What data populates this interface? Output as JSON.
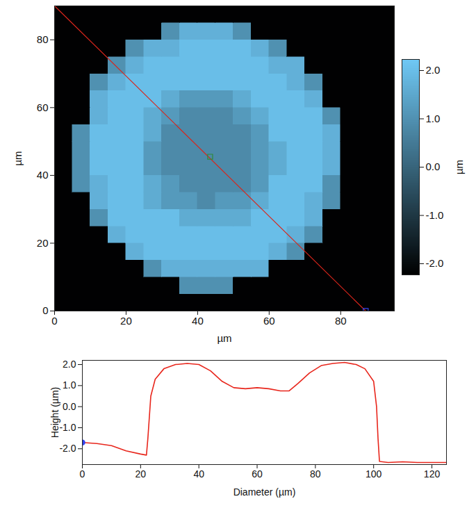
{
  "chart_data": [
    {
      "type": "heatmap",
      "xlabel": "µm",
      "ylabel": "µm",
      "xlim": [
        0,
        95
      ],
      "ylim": [
        0,
        90
      ],
      "xticks": [
        0,
        20,
        40,
        60,
        80
      ],
      "yticks": [
        0,
        20,
        40,
        60,
        80
      ],
      "grid": false,
      "x": [
        2.5,
        7.5,
        12.5,
        17.5,
        22.5,
        27.5,
        32.5,
        37.5,
        42.5,
        47.5,
        52.5,
        57.5,
        62.5,
        67.5,
        72.5,
        77.5,
        82.5,
        87.5,
        92.5
      ],
      "y": [
        2.5,
        7.5,
        12.5,
        17.5,
        22.5,
        27.5,
        32.5,
        37.5,
        42.5,
        47.5,
        52.5,
        57.5,
        62.5,
        67.5,
        72.5,
        77.5,
        82.5,
        87.5
      ],
      "z": [
        [
          -2.2,
          -2.2,
          -2.2,
          -2.2,
          -2.2,
          -2.2,
          -2.2,
          -2.2,
          -2.2,
          -2.2,
          -2.2,
          -2.2,
          -2.2,
          -2.2,
          -2.2,
          -2.2,
          -2.2,
          -2.2,
          -2.2
        ],
        [
          -2.2,
          -2.2,
          -2.2,
          -2.2,
          -2.2,
          -2.2,
          -2.2,
          1,
          1,
          1,
          -2.2,
          -2.2,
          -2.2,
          -2.2,
          -2.2,
          -2.2,
          -2.2,
          -2.2,
          -2.2
        ],
        [
          -2.2,
          -2.2,
          -2.2,
          -2.2,
          -2.2,
          1,
          1.7,
          1.7,
          1.7,
          1.7,
          1.7,
          1.7,
          -2.2,
          -2.2,
          -2.2,
          -2.2,
          -2.2,
          -2.2,
          -2.2
        ],
        [
          -2.2,
          -2.2,
          -2.2,
          -2.2,
          1.7,
          2,
          2,
          2,
          2,
          2,
          2,
          2,
          1.7,
          1,
          -2.2,
          -2.2,
          -2.2,
          -2.2,
          -2.2
        ],
        [
          -2.2,
          -2.2,
          -2.2,
          1.7,
          2,
          2,
          2,
          2,
          2,
          2,
          2,
          2,
          2,
          1.7,
          1,
          -2.2,
          -2.2,
          -2.2,
          -2.2
        ],
        [
          -2.2,
          -2.2,
          1,
          2,
          2,
          2,
          2,
          1.6,
          1.6,
          1.6,
          1.6,
          2,
          2,
          2,
          1.7,
          -2.2,
          -2.2,
          -2.2,
          -2.2
        ],
        [
          -2.2,
          -2.2,
          1.7,
          2,
          2,
          1.6,
          1.2,
          1.2,
          0.85,
          1.2,
          1.2,
          1.6,
          2,
          2,
          1.7,
          1,
          -2.2,
          -2.2,
          -2.2
        ],
        [
          -2.2,
          1,
          1.7,
          2,
          2,
          1.6,
          1.2,
          0.85,
          0.85,
          0.85,
          0.85,
          1.2,
          2,
          2,
          2,
          1,
          -2.2,
          -2.2,
          -2.2
        ],
        [
          -2.2,
          1,
          2,
          2,
          2,
          1.2,
          0.85,
          0.85,
          0.85,
          0.85,
          0.85,
          1.2,
          1.6,
          2,
          2,
          1.7,
          -2.2,
          -2.2,
          -2.2
        ],
        [
          -2.2,
          1,
          2,
          2,
          2,
          1.2,
          0.85,
          0.85,
          0.85,
          0.85,
          0.85,
          1.2,
          1.6,
          2,
          2,
          1.7,
          -2.2,
          -2.2,
          -2.2
        ],
        [
          -2.2,
          1,
          2,
          2,
          2,
          1.6,
          0.85,
          0.85,
          0.85,
          0.85,
          0.85,
          1.2,
          2,
          2,
          2,
          1.7,
          -2.2,
          -2.2,
          -2.2
        ],
        [
          -2.2,
          -2.2,
          1.7,
          2,
          2,
          1.6,
          1.2,
          0.85,
          0.85,
          0.85,
          1.2,
          1.6,
          2,
          2,
          2,
          1,
          -2.2,
          -2.2,
          -2.2
        ],
        [
          -2.2,
          -2.2,
          1.7,
          2,
          2,
          2,
          1.6,
          1.2,
          1.2,
          1.2,
          1.6,
          2,
          2,
          2,
          1.7,
          -2.2,
          -2.2,
          -2.2,
          -2.2
        ],
        [
          -2.2,
          -2.2,
          1,
          1.7,
          2,
          2,
          2,
          2,
          2,
          2,
          2,
          2,
          2,
          1.7,
          1,
          -2.2,
          -2.2,
          -2.2,
          -2.2
        ],
        [
          -2.2,
          -2.2,
          -2.2,
          1,
          1.7,
          2,
          2,
          2,
          2,
          2,
          2,
          2,
          1.7,
          1.7,
          -2.2,
          -2.2,
          -2.2,
          -2.2,
          -2.2
        ],
        [
          -2.2,
          -2.2,
          -2.2,
          -2.2,
          1,
          1.7,
          1.7,
          2,
          2,
          2,
          2,
          1.7,
          1,
          -2.2,
          -2.2,
          -2.2,
          -2.2,
          -2.2,
          -2.2
        ],
        [
          -2.2,
          -2.2,
          -2.2,
          -2.2,
          -2.2,
          -2.2,
          1,
          1.7,
          1.7,
          1.7,
          1,
          -2.2,
          -2.2,
          -2.2,
          -2.2,
          -2.2,
          -2.2,
          -2.2,
          -2.2
        ],
        [
          -2.2,
          -2.2,
          -2.2,
          -2.2,
          -2.2,
          -2.2,
          -2.2,
          -2.2,
          -2.2,
          -2.2,
          -2.2,
          -2.2,
          -2.2,
          -2.2,
          -2.2,
          -2.2,
          -2.2,
          -2.2,
          -2.2
        ]
      ],
      "colorbar": {
        "label": "µm",
        "range": [
          -2.23,
          2.23
        ],
        "ticks": [
          {
            "value": 2,
            "label": "2.0"
          },
          {
            "value": 1,
            "label": "1.0"
          },
          {
            "value": 0,
            "label": "0.0"
          },
          {
            "value": -1,
            "label": "-1.0"
          },
          {
            "value": -2,
            "label": "-2.0"
          }
        ],
        "colors": [
          "#000000",
          "#6fc8f5"
        ]
      },
      "profile_line": {
        "x": [
          0,
          87
        ],
        "y": [
          90,
          0
        ],
        "color": "#d8261c"
      },
      "markers": [
        {
          "x": 43.5,
          "y": 45.5,
          "color": "#2e8b3a",
          "marker": "square"
        },
        {
          "x": 87,
          "y": 0,
          "color": "#3344ee",
          "marker": "square"
        }
      ]
    },
    {
      "type": "line",
      "xlabel": "Diameter (µm)",
      "ylabel": "Height (µm)",
      "xlim": [
        0,
        125
      ],
      "ylim": [
        -2.75,
        2.2
      ],
      "xticks": [
        0,
        20,
        40,
        60,
        80,
        100,
        120
      ],
      "yticks": [
        {
          "value": 2,
          "label": "2.0"
        },
        {
          "value": 1,
          "label": "1.0"
        },
        {
          "value": 0,
          "label": "0.0"
        },
        {
          "value": -1,
          "label": "-1.0"
        },
        {
          "value": -2,
          "label": "-2.0"
        }
      ],
      "grid": false,
      "color": "#e8261c",
      "x": [
        0,
        5,
        10,
        15,
        20,
        22,
        22.5,
        23.5,
        25,
        28,
        32,
        36,
        40,
        44,
        48,
        52,
        56,
        60,
        64,
        68,
        71,
        74,
        78,
        82,
        86,
        90,
        94,
        97,
        100,
        101,
        101.5,
        102,
        105,
        110,
        115,
        120,
        125
      ],
      "values": [
        -1.7,
        -1.75,
        -1.85,
        -2.1,
        -2.25,
        -2.3,
        -1.5,
        0.5,
        1.3,
        1.8,
        2.0,
        2.05,
        2.0,
        1.7,
        1.2,
        0.9,
        0.85,
        0.9,
        0.85,
        0.75,
        0.75,
        1.1,
        1.6,
        1.95,
        2.05,
        2.1,
        2.0,
        1.8,
        1.2,
        0,
        -1.5,
        -2.6,
        -2.65,
        -2.62,
        -2.65,
        -2.65,
        -2.65
      ],
      "start_marker": {
        "x": 0,
        "y": -1.7,
        "color": "#3344ee",
        "marker": "circle"
      }
    }
  ]
}
